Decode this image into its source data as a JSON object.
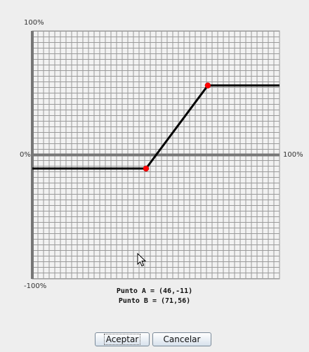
{
  "chart_data": {
    "type": "line",
    "title": "",
    "xlim": [
      0,
      100
    ],
    "ylim": [
      -100,
      100
    ],
    "y_top_label": "100%",
    "y_zero_label": "0%",
    "y_bottom_label": "-100%",
    "x_right_label": "100%",
    "grid": true,
    "x": [
      0,
      46,
      71,
      100
    ],
    "y": [
      -11,
      -11,
      56,
      56
    ],
    "control_points": [
      {
        "name": "A",
        "x": 46,
        "y": -11
      },
      {
        "name": "B",
        "x": 71,
        "y": 56
      }
    ]
  },
  "points_text": {
    "a": "Punto A = (46,-11)",
    "b": "Punto B = (71,56)"
  },
  "buttons": {
    "accept": "Aceptar",
    "cancel": "Cancelar"
  },
  "colors": {
    "grid": "#9a9a9a",
    "axis": "#777777",
    "curve": "#000000",
    "point": "#ff0000",
    "plot_bg": "#f2f2f2"
  }
}
